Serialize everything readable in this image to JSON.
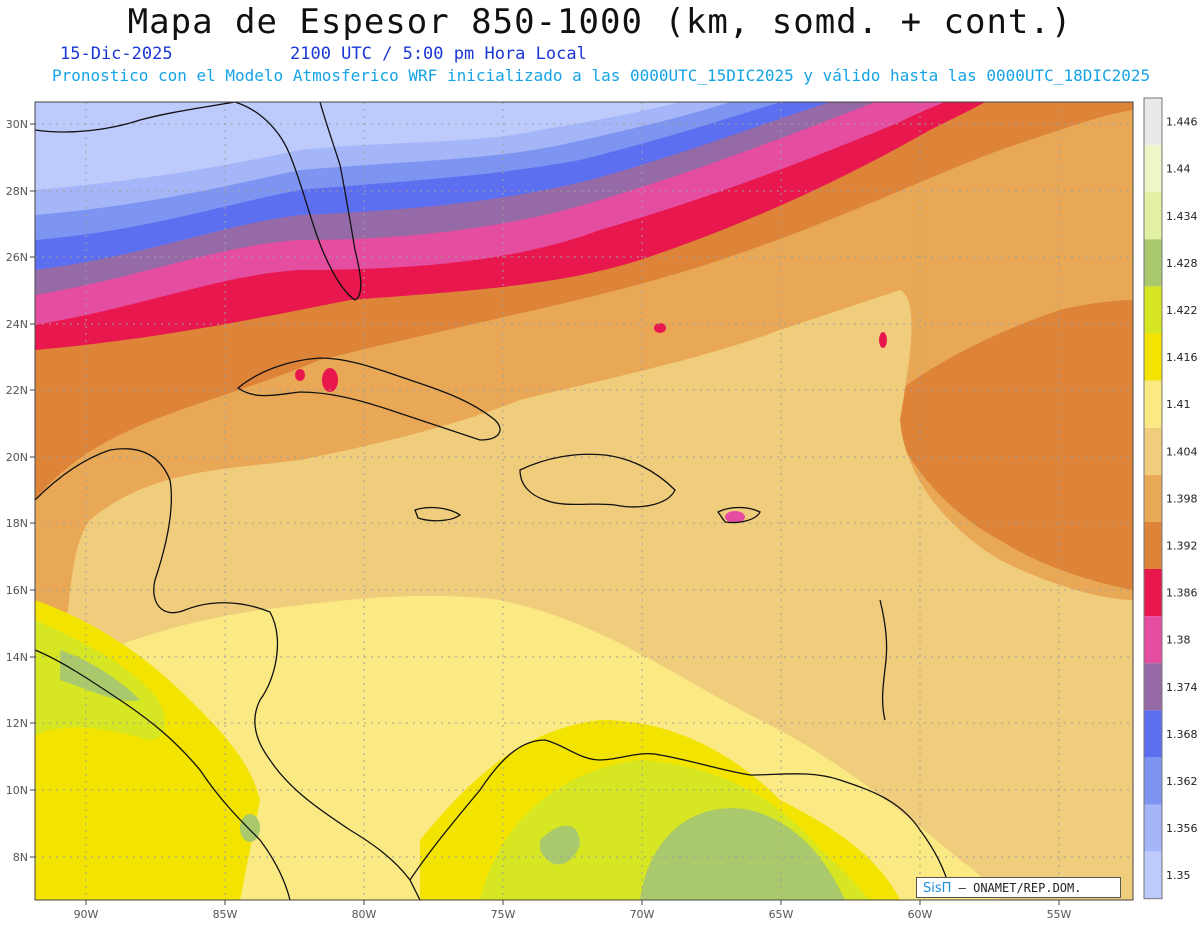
{
  "header": {
    "title": "Mapa de Espesor 850-1000 (km, somd. + cont.)",
    "date": "15-Dic-2025",
    "time": "2100 UTC / 5:00 pm Hora Local",
    "description": "Pronostico con el Modelo Atmosferico WRF inicializado a las 0000UTC_15DIC2025 y válido hasta las  0000UTC_18DIC2025"
  },
  "axes": {
    "lat_labels": [
      "30N",
      "28N",
      "26N",
      "24N",
      "22N",
      "20N",
      "18N",
      "16N",
      "14N",
      "12N",
      "10N",
      "8N"
    ],
    "lon_labels": [
      "90W",
      "85W",
      "80W",
      "75W",
      "70W",
      "65W",
      "60W",
      "55W"
    ]
  },
  "colorbar": {
    "labels": [
      "1.446",
      "1.44",
      "1.434",
      "1.428",
      "1.422",
      "1.416",
      "1.41",
      "1.404",
      "1.398",
      "1.392",
      "1.386",
      "1.38",
      "1.374",
      "1.368",
      "1.362",
      "1.356",
      "1.35"
    ],
    "colors": [
      "#e9e9e9",
      "#eef5c6",
      "#e2f0a2",
      "#a9c96c",
      "#d6e622",
      "#f2e300",
      "#fbe984",
      "#f0cd7c",
      "#e9a855",
      "#dd8439",
      "#e8174e",
      "#e54da0",
      "#956aa6",
      "#5c6ff1",
      "#7e94f1",
      "#a4b6f8",
      "#bccafc"
    ]
  },
  "credit": {
    "logo": "SisΠ",
    "text": "– ONAMET/REP.DOM."
  }
}
